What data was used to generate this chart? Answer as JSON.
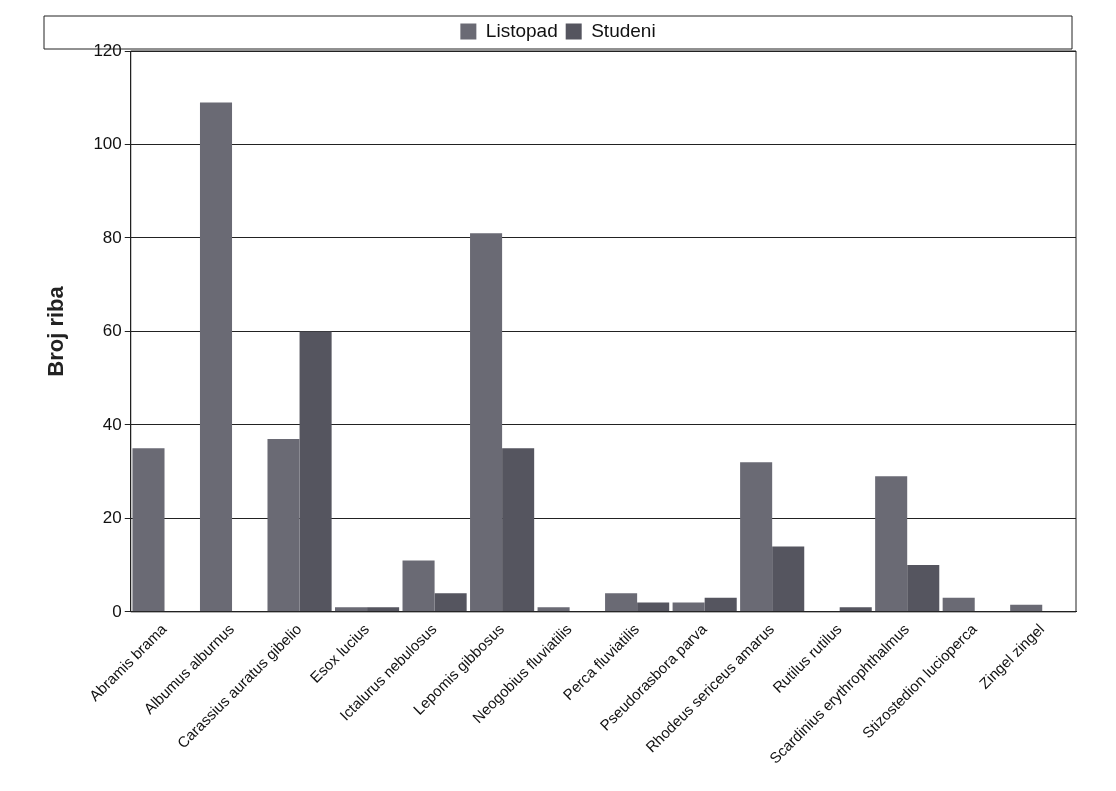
{
  "chart_data": {
    "type": "bar",
    "ylabel": "Broj riba",
    "categories": [
      "Abramis brama",
      "Albumus alburnus",
      "Carassius auratus gibelio",
      "Esox lucius",
      "Ictalurus nebulosus",
      "Lepomis gibbosus",
      "Neogobius fluviatilis",
      "Perca fluviatilis",
      "Pseudorasbora parva",
      "Rhodeus sericeus amarus",
      "Rutilus rutilus",
      "Scardinius erythrophthalmus",
      "Stizostedion lucioperca",
      "Zingel zingel"
    ],
    "series": [
      {
        "name": "Listopad",
        "color": "#6a6a74",
        "values": [
          35,
          109,
          37,
          1,
          11,
          81,
          1,
          4,
          2,
          32,
          null,
          29,
          3,
          1.5
        ]
      },
      {
        "name": "Studeni",
        "color": "#55555f",
        "values": [
          null,
          null,
          60,
          1,
          4,
          35,
          null,
          2,
          3,
          14,
          1,
          10,
          null,
          null
        ]
      }
    ],
    "ylim": [
      0,
      120
    ],
    "yticks": [
      0,
      20,
      40,
      60,
      80,
      100,
      120
    ],
    "grid": "y",
    "legend": "top"
  }
}
